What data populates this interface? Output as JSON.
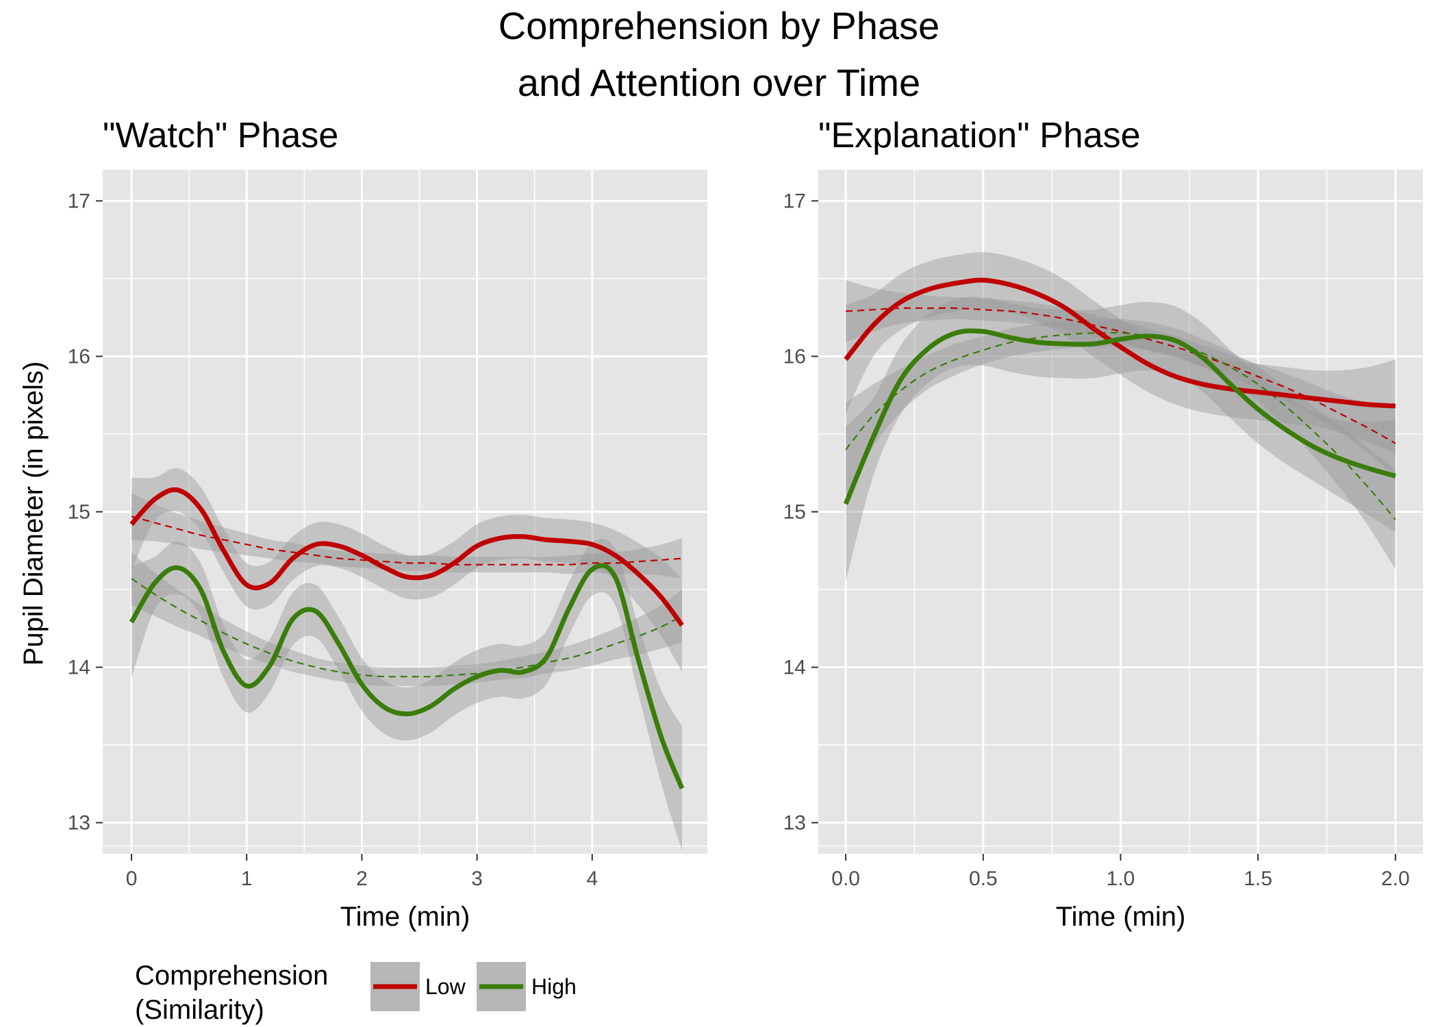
{
  "figure": {
    "title_line1": "Comprehension by Phase",
    "title_line2": "and Attention over Time"
  },
  "legend": {
    "title_line1": "Comprehension",
    "title_line2": "(Similarity)",
    "entries": [
      {
        "label": "Low",
        "color": "#c00000"
      },
      {
        "label": "High",
        "color": "#3a7d0a"
      }
    ]
  },
  "colors": {
    "panel_bg": "#e5e5e5",
    "grid": "#ffffff",
    "ribbon": "#999999",
    "low": "#c00000",
    "high": "#3a7d0a"
  },
  "chart_data": [
    {
      "type": "line",
      "title": "\"Watch\" Phase",
      "xlabel": "Time (min)",
      "ylabel": "Pupil Diameter (in pixels)",
      "xlim": [
        -0.25,
        5.0
      ],
      "ylim": [
        12.8,
        17.2
      ],
      "xticks": [
        0,
        1,
        2,
        3,
        4
      ],
      "xtick_labels": [
        "0",
        "1",
        "2",
        "3",
        "4"
      ],
      "yticks": [
        13,
        14,
        15,
        16,
        17
      ],
      "ytick_labels": [
        "13",
        "14",
        "15",
        "16",
        "17"
      ],
      "grid": true,
      "series": [
        {
          "name": "Low",
          "x": [
            0,
            0.2,
            0.4,
            0.6,
            0.8,
            1.0,
            1.2,
            1.4,
            1.6,
            1.8,
            2.0,
            2.2,
            2.4,
            2.6,
            2.8,
            3.0,
            3.2,
            3.4,
            3.6,
            3.8,
            4.0,
            4.2,
            4.4,
            4.6,
            4.78
          ],
          "smooth": [
            14.92,
            15.08,
            15.14,
            15.02,
            14.75,
            14.53,
            14.54,
            14.7,
            14.79,
            14.78,
            14.72,
            14.64,
            14.58,
            14.59,
            14.67,
            14.78,
            14.83,
            14.84,
            14.82,
            14.81,
            14.79,
            14.72,
            14.6,
            14.45,
            14.27
          ],
          "se": [
            0.3,
            0.14,
            0.14,
            0.14,
            0.14,
            0.14,
            0.14,
            0.14,
            0.14,
            0.14,
            0.14,
            0.14,
            0.14,
            0.14,
            0.14,
            0.14,
            0.14,
            0.14,
            0.14,
            0.14,
            0.14,
            0.16,
            0.2,
            0.25,
            0.3
          ],
          "trend": [
            14.97,
            14.93,
            14.89,
            14.85,
            14.82,
            14.79,
            14.76,
            14.74,
            14.72,
            14.7,
            14.69,
            14.68,
            14.67,
            14.67,
            14.66,
            14.66,
            14.66,
            14.66,
            14.66,
            14.66,
            14.67,
            14.67,
            14.68,
            14.69,
            14.7
          ],
          "trend_se": [
            0.15,
            0.12,
            0.1,
            0.09,
            0.08,
            0.07,
            0.06,
            0.06,
            0.05,
            0.05,
            0.05,
            0.05,
            0.05,
            0.05,
            0.05,
            0.05,
            0.05,
            0.05,
            0.05,
            0.06,
            0.06,
            0.07,
            0.08,
            0.1,
            0.13
          ]
        },
        {
          "name": "High",
          "x": [
            0,
            0.2,
            0.4,
            0.6,
            0.8,
            1.0,
            1.2,
            1.4,
            1.6,
            1.8,
            2.0,
            2.2,
            2.4,
            2.6,
            2.8,
            3.0,
            3.2,
            3.4,
            3.6,
            3.8,
            4.0,
            4.2,
            4.4,
            4.6,
            4.78
          ],
          "smooth": [
            14.29,
            14.54,
            14.64,
            14.5,
            14.1,
            13.88,
            14.01,
            14.31,
            14.36,
            14.15,
            13.89,
            13.74,
            13.7,
            13.75,
            13.86,
            13.94,
            13.98,
            13.97,
            14.06,
            14.38,
            14.63,
            14.58,
            14.05,
            13.55,
            13.22
          ],
          "se": [
            0.36,
            0.17,
            0.17,
            0.17,
            0.17,
            0.17,
            0.17,
            0.17,
            0.17,
            0.17,
            0.17,
            0.17,
            0.17,
            0.17,
            0.17,
            0.17,
            0.17,
            0.17,
            0.17,
            0.17,
            0.17,
            0.18,
            0.22,
            0.3,
            0.4
          ],
          "trend": [
            14.57,
            14.47,
            14.38,
            14.3,
            14.22,
            14.15,
            14.09,
            14.04,
            14.0,
            13.97,
            13.95,
            13.94,
            13.94,
            13.94,
            13.95,
            13.96,
            13.98,
            14.0,
            14.03,
            14.06,
            14.1,
            14.15,
            14.2,
            14.26,
            14.33
          ],
          "trend_se": [
            0.17,
            0.14,
            0.12,
            0.1,
            0.09,
            0.08,
            0.07,
            0.07,
            0.06,
            0.06,
            0.06,
            0.06,
            0.06,
            0.06,
            0.06,
            0.06,
            0.06,
            0.07,
            0.07,
            0.08,
            0.09,
            0.1,
            0.12,
            0.14,
            0.17
          ]
        }
      ]
    },
    {
      "type": "line",
      "title": "\"Explanation\" Phase",
      "xlabel": "Time (min)",
      "ylabel": "",
      "xlim": [
        -0.1,
        2.1
      ],
      "ylim": [
        12.8,
        17.2
      ],
      "xticks": [
        0.0,
        0.5,
        1.0,
        1.5,
        2.0
      ],
      "xtick_labels": [
        "0.0",
        "0.5",
        "1.0",
        "1.5",
        "2.0"
      ],
      "yticks": [
        13,
        14,
        15,
        16,
        17
      ],
      "ytick_labels": [
        "13",
        "14",
        "15",
        "16",
        "17"
      ],
      "grid": true,
      "series": [
        {
          "name": "Low",
          "x": [
            0,
            0.1,
            0.2,
            0.3,
            0.4,
            0.5,
            0.6,
            0.7,
            0.8,
            0.9,
            1.0,
            1.1,
            1.2,
            1.3,
            1.4,
            1.5,
            1.6,
            1.7,
            1.8,
            1.9,
            2.0
          ],
          "smooth": [
            15.98,
            16.2,
            16.35,
            16.43,
            16.47,
            16.49,
            16.46,
            16.4,
            16.31,
            16.18,
            16.06,
            15.95,
            15.87,
            15.82,
            15.79,
            15.77,
            15.75,
            15.73,
            15.71,
            15.69,
            15.68
          ],
          "se": [
            0.35,
            0.2,
            0.18,
            0.18,
            0.18,
            0.18,
            0.18,
            0.18,
            0.18,
            0.18,
            0.18,
            0.18,
            0.18,
            0.18,
            0.18,
            0.18,
            0.18,
            0.18,
            0.2,
            0.24,
            0.3
          ],
          "trend": [
            16.29,
            16.3,
            16.31,
            16.31,
            16.31,
            16.3,
            16.29,
            16.27,
            16.24,
            16.2,
            16.16,
            16.11,
            16.06,
            16.0,
            15.94,
            15.87,
            15.8,
            15.72,
            15.63,
            15.54,
            15.44
          ],
          "trend_se": [
            0.2,
            0.14,
            0.1,
            0.08,
            0.07,
            0.07,
            0.07,
            0.07,
            0.07,
            0.07,
            0.07,
            0.07,
            0.07,
            0.07,
            0.07,
            0.08,
            0.09,
            0.1,
            0.12,
            0.16,
            0.22
          ]
        },
        {
          "name": "High",
          "x": [
            0,
            0.1,
            0.2,
            0.3,
            0.4,
            0.5,
            0.6,
            0.7,
            0.8,
            0.9,
            1.0,
            1.1,
            1.2,
            1.3,
            1.4,
            1.5,
            1.6,
            1.7,
            1.8,
            1.9,
            2.0
          ],
          "smooth": [
            15.05,
            15.48,
            15.85,
            16.05,
            16.15,
            16.16,
            16.12,
            16.09,
            16.08,
            16.08,
            16.11,
            16.13,
            16.1,
            15.99,
            15.82,
            15.66,
            15.53,
            15.42,
            15.34,
            15.28,
            15.23
          ],
          "se": [
            0.5,
            0.25,
            0.22,
            0.22,
            0.22,
            0.22,
            0.22,
            0.22,
            0.22,
            0.22,
            0.22,
            0.22,
            0.22,
            0.22,
            0.22,
            0.22,
            0.22,
            0.22,
            0.25,
            0.3,
            0.36
          ],
          "trend": [
            15.4,
            15.62,
            15.78,
            15.9,
            15.98,
            16.04,
            16.09,
            16.12,
            16.14,
            16.15,
            16.15,
            16.13,
            16.09,
            16.02,
            15.93,
            15.82,
            15.68,
            15.52,
            15.35,
            15.16,
            14.95
          ],
          "trend_se": [
            0.3,
            0.2,
            0.14,
            0.11,
            0.1,
            0.09,
            0.09,
            0.09,
            0.09,
            0.09,
            0.09,
            0.09,
            0.09,
            0.09,
            0.1,
            0.11,
            0.13,
            0.16,
            0.2,
            0.25,
            0.32
          ]
        }
      ]
    }
  ]
}
